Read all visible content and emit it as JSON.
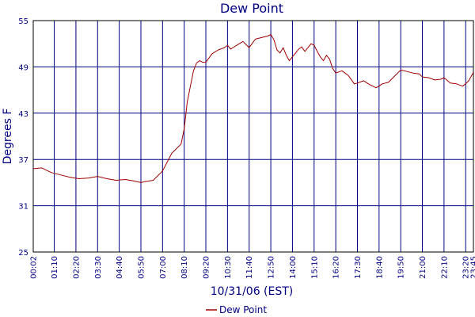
{
  "chart_data": {
    "type": "line",
    "title": "Dew Point",
    "xlabel": "10/31/06 (EST)",
    "ylabel": "Degrees F",
    "ylim": [
      25,
      55
    ],
    "yticks": [
      "25",
      "31",
      "37",
      "43",
      "49",
      "55"
    ],
    "xticks": [
      "00:02",
      "01:10",
      "02:20",
      "03:30",
      "04:40",
      "05:50",
      "07:00",
      "08:10",
      "09:20",
      "10:30",
      "11:40",
      "12:50",
      "14:00",
      "15:10",
      "16:20",
      "17:30",
      "18:40",
      "19:50",
      "21:00",
      "22:10",
      "23:20",
      "23:45"
    ],
    "grid": true,
    "legend_position": "bottom",
    "colors": {
      "series": "#a00000",
      "axis_text": "#000080",
      "grid": "#000080"
    },
    "series": [
      {
        "name": "Dew Point",
        "x": [
          "00:02",
          "00:30",
          "01:00",
          "01:30",
          "02:00",
          "02:30",
          "03:00",
          "03:30",
          "04:00",
          "04:30",
          "05:00",
          "05:30",
          "05:50",
          "06:00",
          "06:30",
          "07:00",
          "07:30",
          "08:00",
          "08:10",
          "08:20",
          "08:40",
          "08:50",
          "09:00",
          "09:10",
          "09:20",
          "09:40",
          "10:00",
          "10:20",
          "10:30",
          "10:40",
          "11:00",
          "11:20",
          "11:40",
          "12:00",
          "12:20",
          "12:40",
          "12:50",
          "13:00",
          "13:10",
          "13:20",
          "13:30",
          "13:40",
          "13:50",
          "14:00",
          "14:10",
          "14:20",
          "14:30",
          "14:40",
          "14:50",
          "15:00",
          "15:10",
          "15:20",
          "15:30",
          "15:40",
          "15:50",
          "16:00",
          "16:10",
          "16:20",
          "16:40",
          "17:00",
          "17:20",
          "17:30",
          "17:50",
          "18:10",
          "18:30",
          "18:40",
          "18:50",
          "19:10",
          "19:30",
          "19:50",
          "20:10",
          "20:30",
          "20:50",
          "21:00",
          "21:20",
          "21:40",
          "22:00",
          "22:10",
          "22:30",
          "22:50",
          "23:10",
          "23:20",
          "23:30",
          "23:45"
        ],
        "values": [
          35.8,
          35.9,
          35.3,
          35.0,
          34.7,
          34.5,
          34.6,
          34.8,
          34.5,
          34.3,
          34.4,
          34.2,
          34.0,
          34.1,
          34.3,
          35.5,
          37.8,
          39.0,
          41.0,
          44.5,
          48.5,
          49.5,
          49.8,
          49.6,
          49.6,
          50.7,
          51.2,
          51.5,
          51.8,
          51.3,
          51.8,
          52.3,
          51.5,
          52.6,
          52.8,
          53.0,
          53.2,
          52.5,
          51.2,
          50.8,
          51.5,
          50.5,
          49.8,
          50.3,
          50.8,
          51.3,
          51.6,
          51.0,
          51.5,
          52.0,
          51.8,
          51.0,
          50.3,
          49.8,
          50.5,
          50.0,
          48.8,
          48.2,
          48.5,
          47.9,
          46.8,
          46.9,
          47.2,
          46.7,
          46.3,
          46.5,
          46.8,
          47.0,
          47.8,
          48.6,
          48.4,
          48.2,
          48.1,
          47.7,
          47.6,
          47.3,
          47.4,
          47.6,
          46.9,
          46.8,
          46.5,
          46.8,
          47.2,
          48.3
        ]
      }
    ]
  }
}
